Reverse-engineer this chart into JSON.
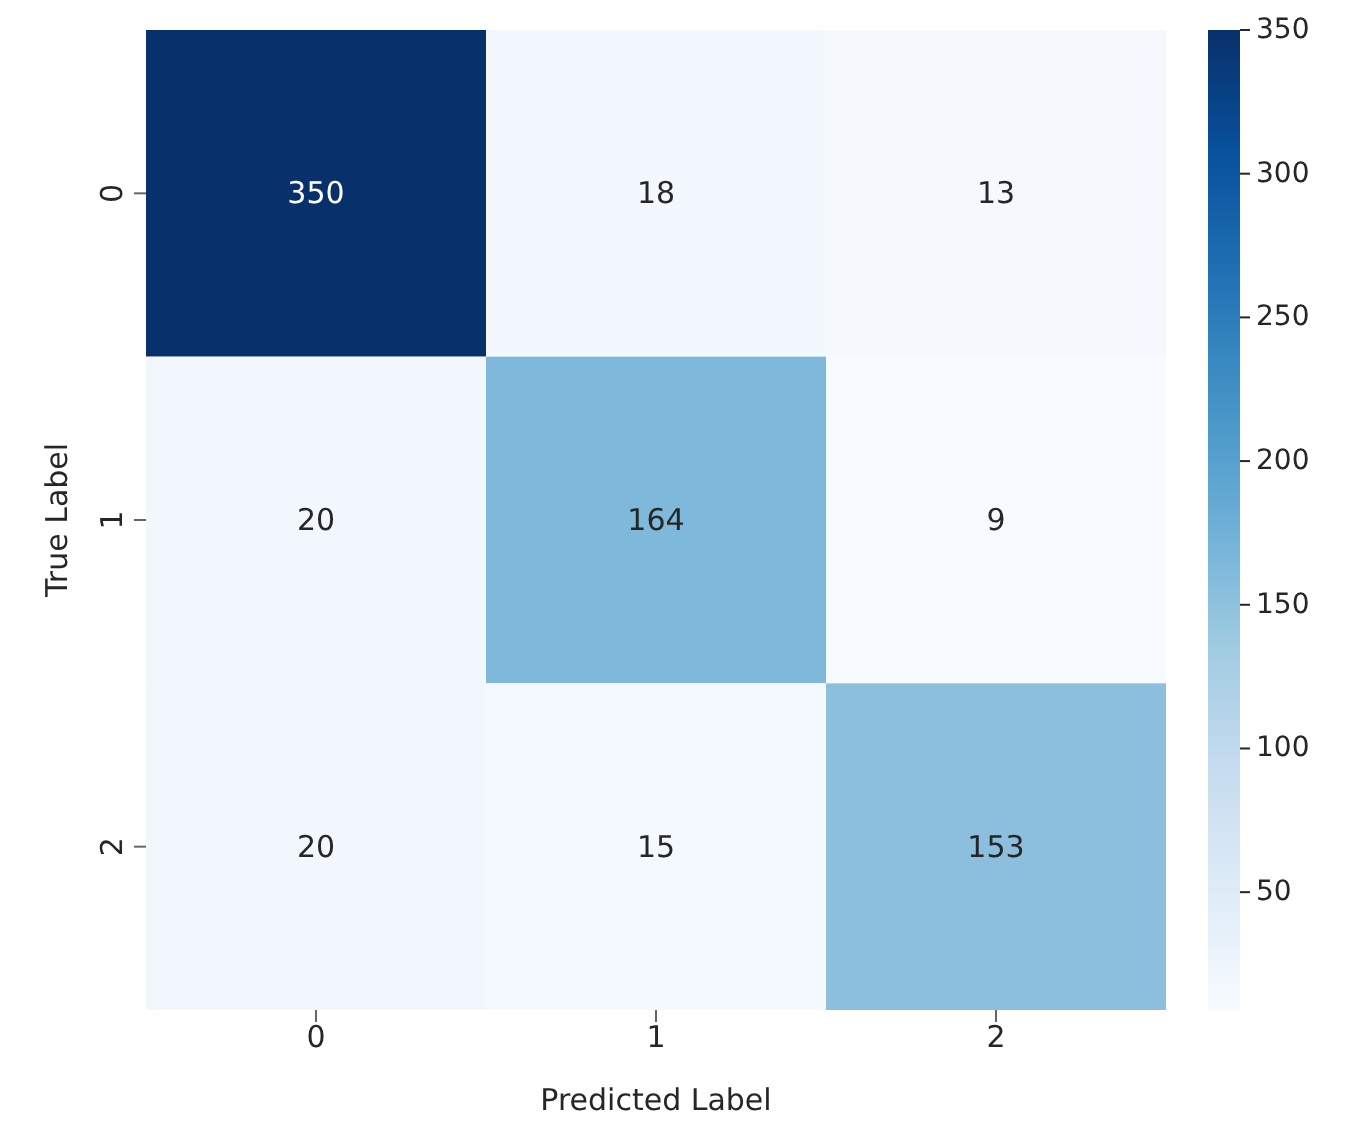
{
  "chart_data": {
    "type": "heatmap",
    "xlabel": "Predicted Label",
    "ylabel": "True Label",
    "categories": [
      "0",
      "1",
      "2"
    ],
    "y_categories": [
      "0",
      "1",
      "2"
    ],
    "cells": [
      [
        350,
        18,
        13
      ],
      [
        20,
        164,
        9
      ],
      [
        20,
        15,
        153
      ]
    ],
    "data_labels": true,
    "clim": [
      9,
      350
    ],
    "cticks": [
      50,
      100,
      150,
      200,
      250,
      300,
      350
    ]
  }
}
